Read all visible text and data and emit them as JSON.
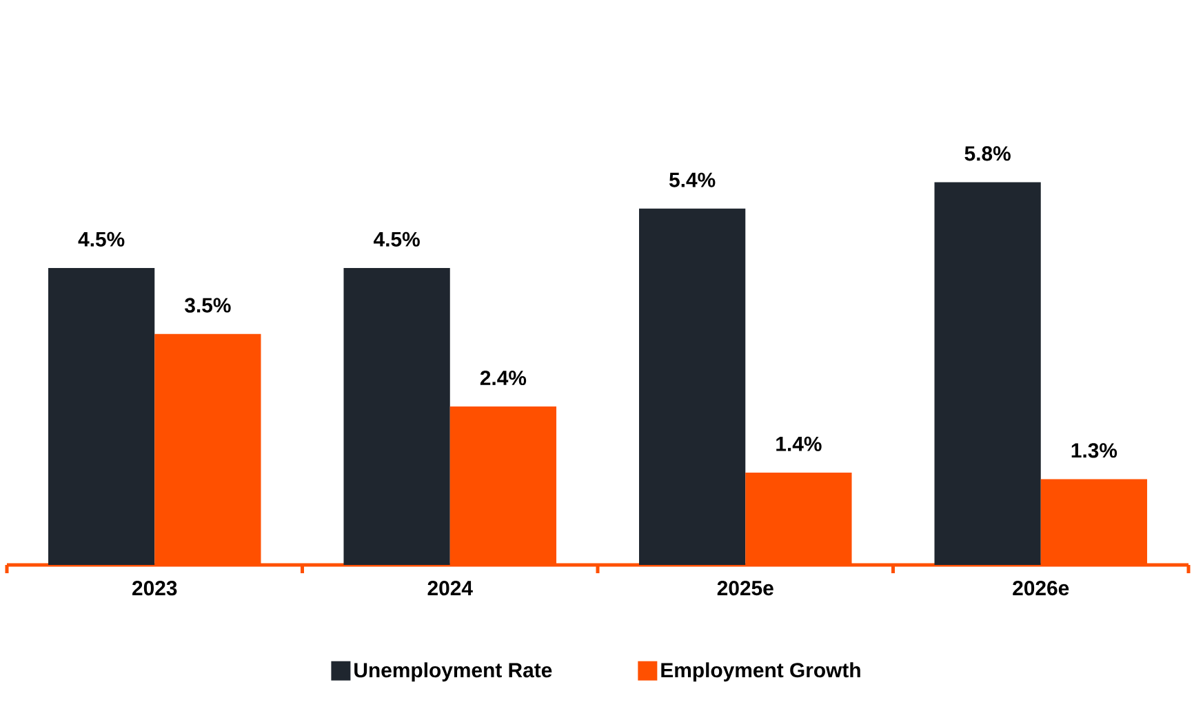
{
  "chart_data": {
    "type": "bar",
    "categories": [
      "2023",
      "2024",
      "2025e",
      "2026e"
    ],
    "series": [
      {
        "name": "Unemployment Rate",
        "color": "#1f262f",
        "values": [
          4.5,
          4.5,
          5.4,
          5.8
        ],
        "value_labels": [
          "4.5%",
          "4.5%",
          "5.4%",
          "5.8%"
        ]
      },
      {
        "name": "Employment Growth",
        "color": "#ff5000",
        "values": [
          3.5,
          2.4,
          1.4,
          1.3
        ],
        "value_labels": [
          "3.5%",
          "2.4%",
          "1.4%",
          "1.3%"
        ]
      }
    ],
    "legend": "bottom"
  }
}
